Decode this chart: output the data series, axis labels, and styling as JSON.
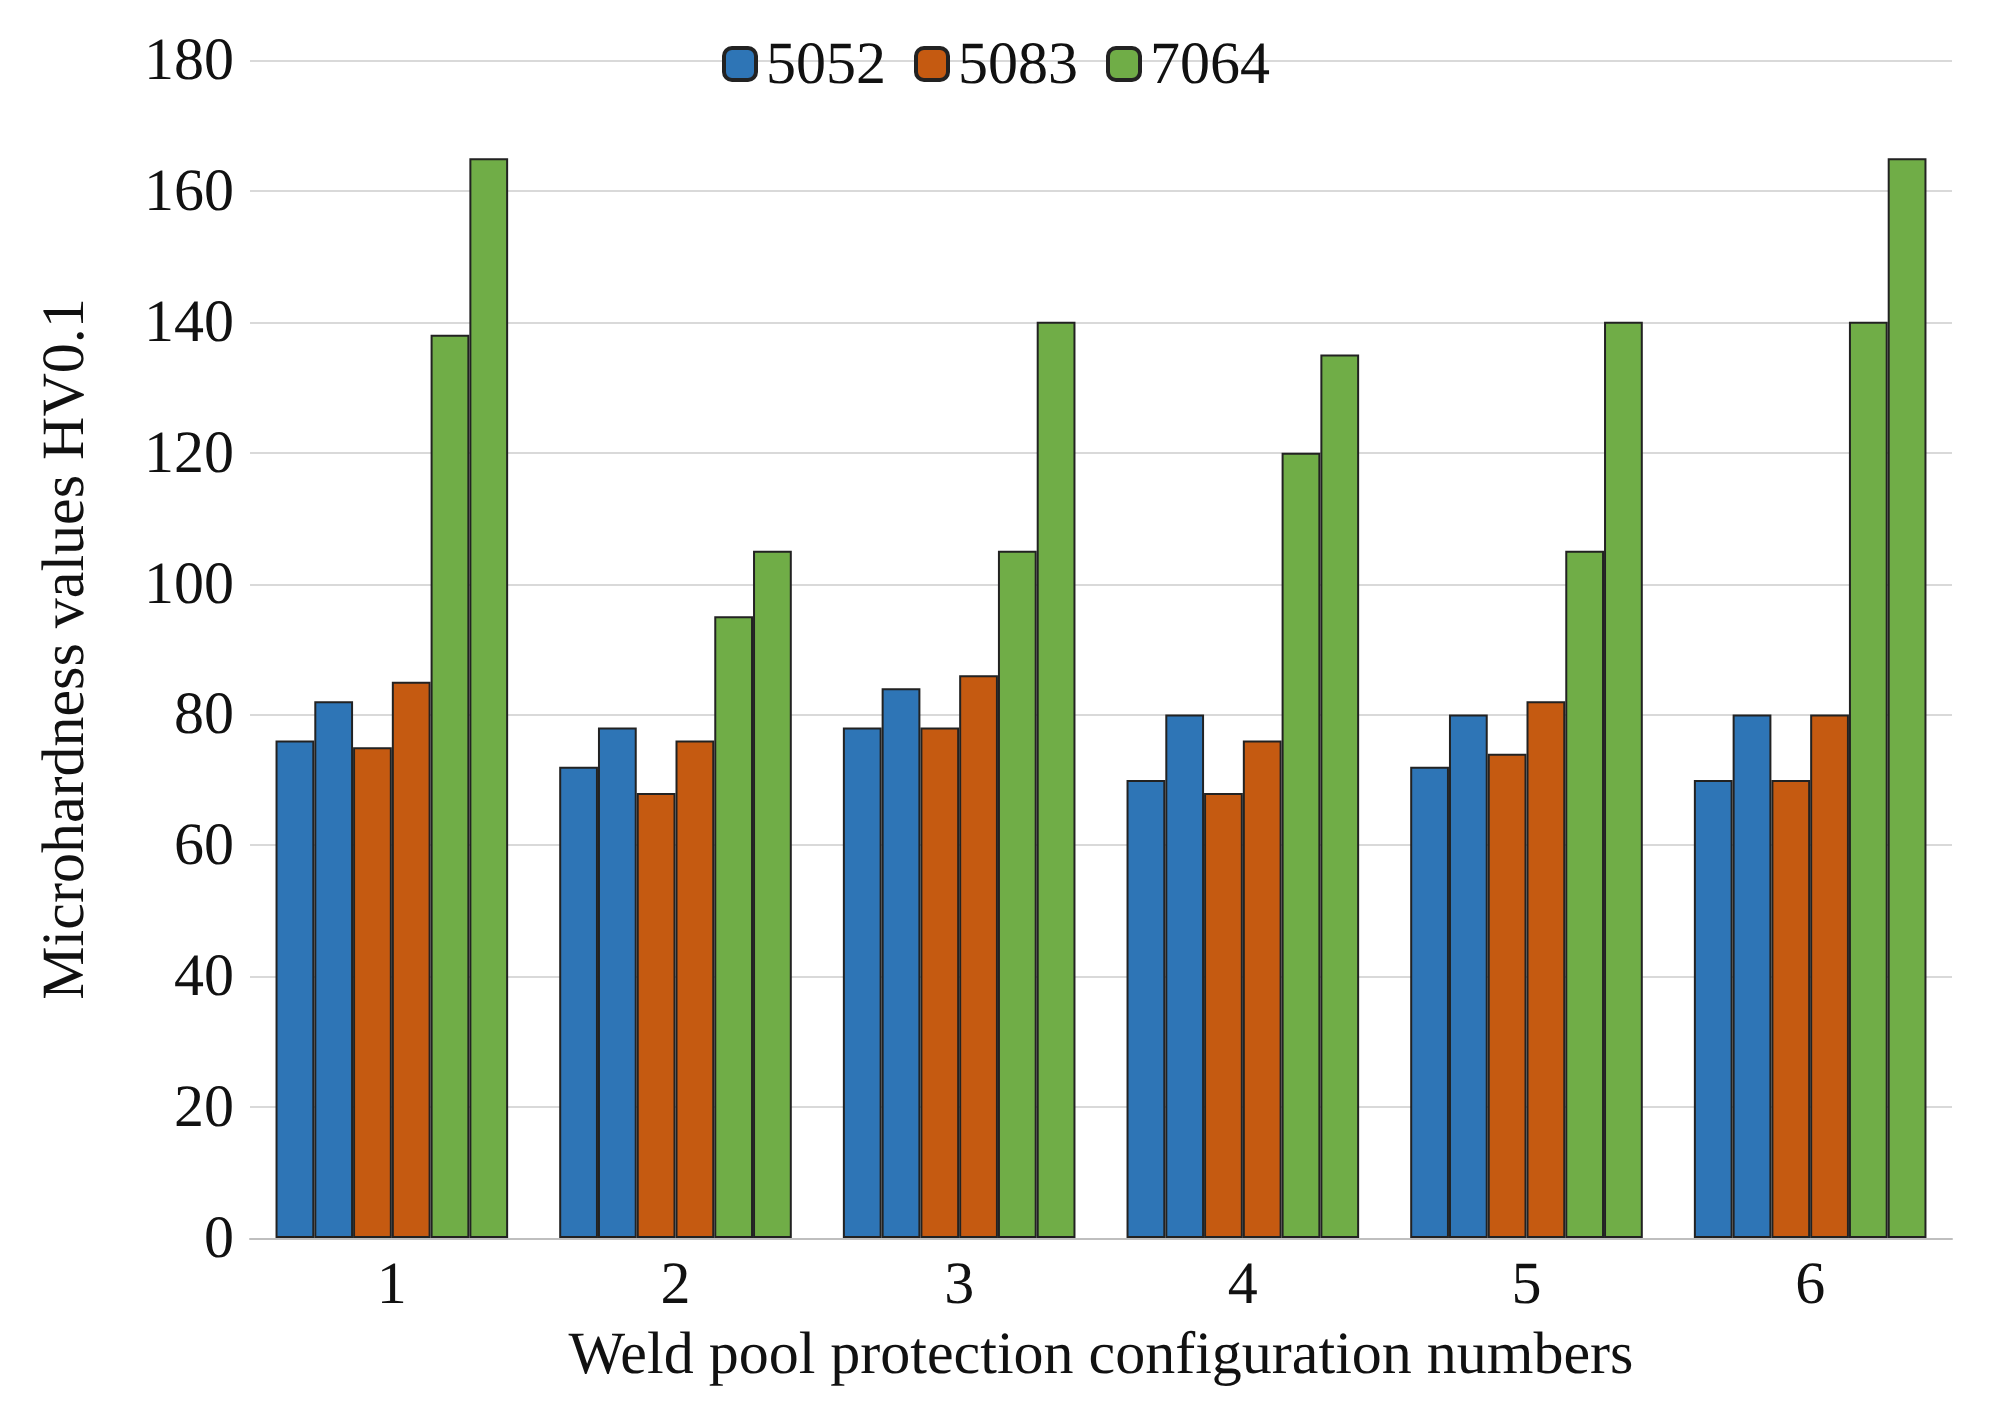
{
  "chart_data": {
    "type": "bar",
    "xlabel": "Weld pool protection configuration numbers",
    "ylabel": "Microhardness values HV0.1",
    "categories": [
      "1",
      "2",
      "3",
      "4",
      "5",
      "6"
    ],
    "series": [
      {
        "name": "5052",
        "color": "#2e75b6",
        "values": [
          76,
          72,
          78,
          70,
          72,
          70
        ]
      },
      {
        "color": "#2e75b6",
        "values": [
          82,
          78,
          84,
          80,
          80,
          80
        ]
      },
      {
        "name": "5083",
        "color": "#c55a11",
        "values": [
          75,
          68,
          78,
          68,
          74,
          70
        ]
      },
      {
        "color": "#c55a11",
        "values": [
          85,
          76,
          86,
          76,
          82,
          80
        ]
      },
      {
        "name": "7064",
        "color": "#70ad47",
        "values": [
          138,
          95,
          105,
          120,
          105,
          140
        ]
      },
      {
        "color": "#70ad47",
        "values": [
          165,
          105,
          140,
          135,
          140,
          165
        ]
      }
    ],
    "ylim": [
      0,
      180
    ],
    "yticks": [
      0,
      20,
      40,
      60,
      80,
      100,
      120,
      140,
      160,
      180
    ],
    "grid": "y",
    "legend": "top"
  }
}
